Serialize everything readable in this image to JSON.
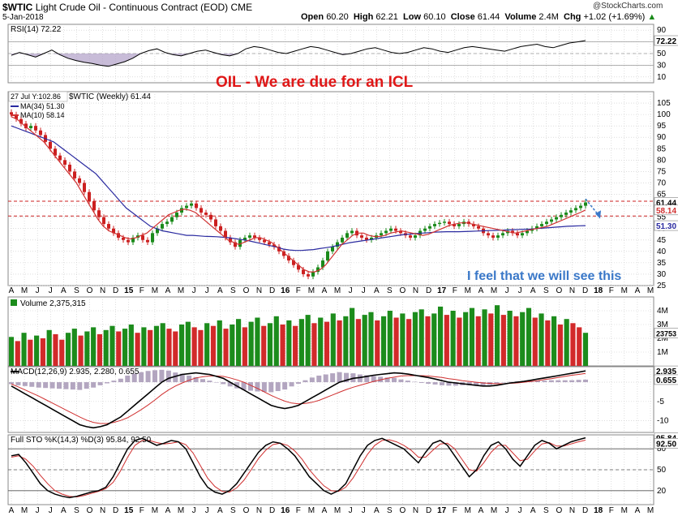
{
  "header": {
    "symbol": "$WTIC",
    "name": "Light Crude Oil - Continuous Contract (EOD)",
    "exchange": "CME",
    "date": "5-Jan-2018",
    "open_label": "Open",
    "open": "60.20",
    "high_label": "High",
    "high": "62.21",
    "low_label": "Low",
    "low": "60.10",
    "close_label": "Close",
    "close": "61.44",
    "volume_label": "Volume",
    "volume": "2.4M",
    "chg_label": "Chg",
    "chg": "+1.02 (+1.69%)",
    "chg_arrow": "▲",
    "brand": "@StockCharts.com"
  },
  "colors": {
    "bg": "#ffffff",
    "grid": "#c8c8c8",
    "price_up": "#1a8a1a",
    "price_down": "#cc2020",
    "ma34": "#2a2aa0",
    "ma10": "#d03030",
    "rsi_fill": "#b0a0c8",
    "annotation_red": "#e01818",
    "annotation_blue": "#3a78c8",
    "volume_up": "#1c8c1c",
    "volume_down": "#d22a2a",
    "macd_hist": "#a090b0",
    "sto_k": "#000000",
    "sto_d": "#d03030"
  },
  "annotations": {
    "headline": "OIL - We are due for an ICL",
    "note": "I feel that we will see this"
  },
  "x_axis_labels": [
    "A",
    "M",
    "J",
    "J",
    "A",
    "S",
    "O",
    "N",
    "D",
    "15",
    "F",
    "M",
    "A",
    "M",
    "J",
    "J",
    "A",
    "S",
    "O",
    "N",
    "D",
    "16",
    "F",
    "M",
    "A",
    "M",
    "J",
    "J",
    "A",
    "S",
    "O",
    "N",
    "D",
    "17",
    "F",
    "M",
    "A",
    "M",
    "J",
    "J",
    "A",
    "S",
    "O",
    "N",
    "D",
    "18",
    "F",
    "M",
    "A",
    "M"
  ],
  "chart_data": [
    {
      "type": "line",
      "panel": "rsi",
      "legend": "RSI(14) 72.22",
      "ylim": [
        0,
        100
      ],
      "y_ticks": [
        10,
        30,
        50,
        70,
        90
      ],
      "last_value": "72.22",
      "values": [
        47,
        52,
        48,
        44,
        50,
        56,
        48,
        42,
        38,
        35,
        33,
        30,
        28,
        32,
        36,
        42,
        50,
        55,
        58,
        52,
        48,
        46,
        50,
        54,
        56,
        52,
        48,
        46,
        50,
        58,
        62,
        60,
        56,
        52,
        50,
        54,
        58,
        62,
        60,
        56,
        52,
        48,
        50,
        54,
        58,
        60,
        56,
        52,
        50,
        52,
        56,
        60,
        58,
        54,
        52,
        56,
        60,
        62,
        60,
        58,
        56,
        54,
        58,
        62,
        64,
        66,
        62,
        60,
        64,
        68,
        70,
        72.22
      ]
    },
    {
      "type": "candlestick",
      "panel": "price",
      "legend_main": "$WTIC (Weekly) 61.44",
      "legend_ma34": "MA(34) 51.30",
      "legend_ma10": "MA(10) 58.14",
      "tooltip": "27 Jul Y:102.86",
      "ylim": [
        25,
        110
      ],
      "y_ticks": [
        25,
        30,
        35,
        40,
        45,
        50,
        55,
        60,
        65,
        70,
        75,
        80,
        85,
        90,
        95,
        100,
        105
      ],
      "ref_lines": [
        62,
        55.5
      ],
      "last_labels": [
        "61.44",
        "58.14",
        "51.30"
      ],
      "close": [
        100,
        98,
        96,
        94,
        95,
        93,
        91,
        88,
        85,
        82,
        80,
        78,
        75,
        72,
        70,
        66,
        62,
        58,
        55,
        52,
        50,
        48,
        46,
        45,
        44,
        46,
        47,
        45,
        44,
        48,
        50,
        52,
        53,
        55,
        57,
        59,
        60,
        61,
        59,
        57,
        56,
        54,
        51,
        49,
        46,
        44,
        42,
        45,
        46,
        47,
        46,
        45,
        44,
        43,
        42,
        40,
        38,
        36,
        34,
        32,
        30,
        29,
        31,
        33,
        36,
        40,
        42,
        44,
        46,
        48,
        49,
        47,
        46,
        45,
        46,
        47,
        48,
        49,
        50,
        49,
        48,
        47,
        46,
        47,
        49,
        50,
        51,
        52,
        52.5,
        53,
        52,
        51,
        52,
        53,
        52,
        51,
        50,
        48,
        47,
        46,
        47,
        48,
        49,
        48,
        47,
        48,
        49,
        50,
        51,
        52,
        53,
        54,
        55,
        56,
        57,
        58,
        59,
        60,
        61.44
      ],
      "ma34": [
        95,
        94,
        93,
        92,
        91,
        90,
        89,
        88,
        86,
        84,
        82,
        80,
        78,
        76,
        74,
        71,
        68,
        65,
        62,
        59,
        57,
        55,
        53,
        51,
        50,
        49,
        48.5,
        48,
        47.5,
        47,
        47,
        46.8,
        46.6,
        46.5,
        46.4,
        46.2,
        46,
        45.6,
        45.2,
        44.8,
        44.2,
        43.6,
        43,
        42.4,
        41.8,
        41,
        40.6,
        40.4,
        40.4,
        40.6,
        40.8,
        41.2,
        41.6,
        42,
        42.6,
        43.2,
        43.8,
        44.2,
        44.6,
        45,
        45.4,
        45.8,
        46.2,
        46.6,
        47,
        47.4,
        47.6,
        47.8,
        48,
        48.2,
        48.4,
        48.5,
        48.6,
        48.6,
        48.6,
        48.7,
        48.8,
        48.9,
        49,
        49.1,
        49.2,
        49.3,
        49.4,
        49.5,
        49.6,
        49.7,
        49.8,
        50,
        50.2,
        50.4,
        50.6,
        50.8,
        51,
        51.1,
        51.2,
        51.3
      ],
      "ma10": [
        99,
        98,
        96,
        94,
        92,
        90,
        88,
        85,
        82,
        79,
        76,
        73,
        70,
        66,
        62,
        58,
        54,
        51,
        49,
        48,
        47,
        46,
        45.5,
        46,
        47,
        48,
        50,
        52,
        54,
        56,
        57,
        58,
        58.5,
        58,
        57,
        55,
        53,
        51,
        49,
        47,
        45,
        44,
        43,
        44,
        45,
        46,
        46,
        45,
        44,
        42,
        40,
        38,
        36,
        34,
        32,
        31,
        31,
        32,
        34,
        37,
        40,
        43,
        45,
        47,
        48,
        48,
        47,
        46.5,
        46.5,
        47,
        48,
        48.5,
        49,
        48.5,
        48,
        47.5,
        47,
        47.5,
        48.5,
        49.5,
        50.5,
        51.5,
        52,
        52.5,
        52.5,
        52,
        51.5,
        51,
        50.5,
        50,
        49.5,
        49,
        48.5,
        48,
        48.5,
        49,
        49.5,
        50,
        50.5,
        51,
        52,
        53,
        54,
        55,
        56,
        57,
        58.14
      ]
    },
    {
      "type": "bar",
      "panel": "volume",
      "legend": "Volume 2,375,315",
      "ylim": [
        0,
        5
      ],
      "y_ticks_text": [
        "1M",
        "2M",
        "3M",
        "4M"
      ],
      "y_ticks_values": [
        1,
        2,
        3,
        4
      ],
      "last_value": "2375315",
      "values": [
        2.1,
        1.8,
        2.4,
        1.9,
        2.2,
        2.0,
        2.6,
        2.3,
        1.9,
        2.4,
        2.7,
        2.2,
        2.5,
        2.8,
        2.3,
        2.6,
        2.9,
        2.5,
        2.7,
        3.0,
        2.4,
        2.8,
        2.6,
        2.9,
        3.1,
        2.7,
        2.5,
        3.0,
        3.2,
        2.8,
        2.6,
        3.1,
        2.9,
        3.3,
        2.7,
        3.0,
        3.4,
        2.8,
        3.2,
        3.5,
        2.9,
        3.1,
        3.6,
        3.0,
        3.3,
        2.9,
        3.4,
        3.7,
        3.1,
        3.5,
        3.2,
        3.8,
        3.3,
        3.6,
        4.2,
        3.4,
        3.7,
        3.9,
        3.3,
        3.6,
        4.0,
        3.5,
        3.8,
        3.4,
        3.9,
        4.1,
        3.6,
        3.8,
        4.3,
        3.7,
        4.0,
        3.5,
        3.9,
        4.2,
        3.6,
        4.1,
        3.8,
        4.4,
        3.7,
        4.0,
        3.6,
        3.9,
        4.2,
        3.5,
        3.8,
        3.3,
        3.6,
        3.0,
        3.4,
        3.1,
        2.8,
        2.4
      ],
      "up": [
        true,
        false,
        true,
        false,
        true,
        false,
        true,
        false,
        false,
        true,
        true,
        false,
        true,
        true,
        false,
        true,
        true,
        false,
        true,
        true,
        false,
        true,
        false,
        true,
        true,
        false,
        false,
        true,
        true,
        false,
        false,
        true,
        false,
        true,
        false,
        true,
        true,
        false,
        true,
        true,
        false,
        true,
        true,
        false,
        true,
        false,
        true,
        true,
        false,
        true,
        false,
        true,
        false,
        true,
        true,
        false,
        true,
        true,
        false,
        true,
        true,
        false,
        true,
        false,
        true,
        true,
        false,
        true,
        true,
        false,
        true,
        false,
        true,
        true,
        false,
        true,
        false,
        true,
        false,
        true,
        false,
        true,
        true,
        false,
        true,
        false,
        true,
        false,
        true,
        false,
        false,
        true
      ]
    },
    {
      "type": "line",
      "panel": "macd",
      "legend": "MACD(12,26,9) 2.935, 2.280, 0.655",
      "ylim": [
        -13,
        4
      ],
      "y_ticks": [
        -10,
        -5,
        0
      ],
      "last_labels": [
        "2.935",
        "0.655"
      ],
      "macd": [
        -1,
        -2,
        -3,
        -4,
        -5,
        -6,
        -7,
        -8,
        -9,
        -10,
        -11,
        -11.5,
        -11.8,
        -11.5,
        -11,
        -10,
        -9,
        -7.5,
        -6,
        -4.5,
        -3,
        -1.5,
        0,
        1,
        1.5,
        2,
        2.2,
        2.4,
        2.2,
        2,
        1.5,
        1,
        0,
        -1,
        -2,
        -3,
        -4,
        -5,
        -6,
        -6.5,
        -6.8,
        -6.5,
        -6,
        -5,
        -4,
        -3,
        -2,
        -1,
        0,
        0.5,
        1,
        1.2,
        1.5,
        1.8,
        2,
        2.2,
        2.4,
        2.3,
        2.1,
        1.8,
        1.5,
        1.2,
        0.8,
        0.4,
        0,
        -0.2,
        -0.4,
        -0.6,
        -0.8,
        -1,
        -1,
        -0.8,
        -0.5,
        -0.2,
        0,
        0.2,
        0.5,
        0.8,
        1.1,
        1.4,
        1.7,
        2,
        2.3,
        2.6,
        2.935
      ],
      "signal": [
        -0.5,
        -1.2,
        -2,
        -2.8,
        -3.6,
        -4.5,
        -5.4,
        -6.3,
        -7.2,
        -8.1,
        -9,
        -9.8,
        -10.4,
        -10.7,
        -10.7,
        -10.4,
        -9.9,
        -9.2,
        -8.2,
        -7.1,
        -5.9,
        -4.6,
        -3.2,
        -2,
        -1,
        -0.2,
        0.5,
        1.1,
        1.4,
        1.6,
        1.6,
        1.5,
        1.1,
        0.6,
        0,
        -0.8,
        -1.6,
        -2.5,
        -3.4,
        -4.2,
        -4.9,
        -5.4,
        -5.6,
        -5.5,
        -5.2,
        -4.7,
        -4,
        -3.3,
        -2.6,
        -1.9,
        -1.3,
        -0.8,
        -0.3,
        0.2,
        0.6,
        1,
        1.3,
        1.6,
        1.7,
        1.7,
        1.7,
        1.6,
        1.4,
        1.2,
        0.9,
        0.7,
        0.4,
        0.2,
        0,
        -0.2,
        -0.3,
        -0.4,
        -0.4,
        -0.3,
        -0.2,
        0,
        0.2,
        0.4,
        0.7,
        0.9,
        1.2,
        1.5,
        1.8,
        2.0,
        2.28
      ]
    },
    {
      "type": "line",
      "panel": "stochastic",
      "legend": "Full STO %K(14,3) %D(3) 95.84, 92.50",
      "ylim": [
        0,
        100
      ],
      "y_ticks": [
        20,
        50,
        80
      ],
      "last_labels": [
        "95.84",
        "92.50"
      ],
      "k": [
        70,
        72,
        60,
        45,
        30,
        20,
        15,
        12,
        10,
        12,
        15,
        18,
        20,
        25,
        40,
        60,
        80,
        92,
        95,
        90,
        85,
        88,
        92,
        90,
        80,
        60,
        40,
        25,
        18,
        15,
        20,
        30,
        45,
        60,
        75,
        85,
        90,
        88,
        80,
        70,
        55,
        40,
        30,
        20,
        15,
        20,
        30,
        50,
        70,
        85,
        92,
        95,
        90,
        85,
        80,
        70,
        60,
        75,
        88,
        92,
        85,
        70,
        55,
        40,
        50,
        70,
        85,
        90,
        80,
        65,
        55,
        70,
        85,
        92,
        88,
        80,
        85,
        90,
        93,
        95.84
      ],
      "d": [
        68,
        70,
        65,
        55,
        42,
        30,
        20,
        15,
        12,
        11,
        13,
        16,
        19,
        23,
        32,
        48,
        68,
        85,
        92,
        92,
        89,
        87,
        88,
        90,
        86,
        74,
        56,
        38,
        26,
        19,
        18,
        24,
        35,
        50,
        66,
        78,
        86,
        88,
        85,
        77,
        65,
        50,
        38,
        27,
        20,
        19,
        25,
        38,
        55,
        72,
        85,
        92,
        93,
        90,
        85,
        78,
        68,
        68,
        78,
        87,
        88,
        80,
        65,
        50,
        48,
        60,
        75,
        85,
        85,
        74,
        63,
        65,
        77,
        87,
        89,
        84,
        84,
        87,
        90,
        92.5
      ]
    }
  ]
}
